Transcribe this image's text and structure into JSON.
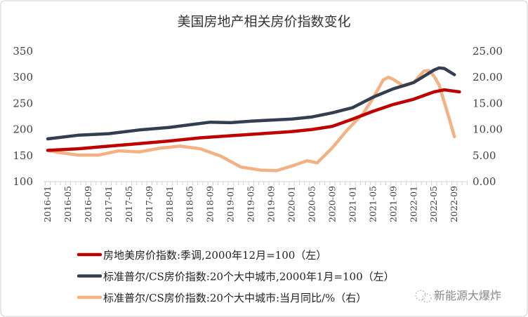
{
  "chart_data": {
    "type": "line",
    "title": "美国房地产相关房价指数变化",
    "x_ticks": [
      "2016-01",
      "2016-05",
      "2016-09",
      "2017-01",
      "2017-05",
      "2017-09",
      "2018-01",
      "2018-05",
      "2018-09",
      "2019-01",
      "2019-05",
      "2019-09",
      "2020-01",
      "2020-05",
      "2020-09",
      "2021-01",
      "2021-05",
      "2021-09",
      "2022-01",
      "2022-05",
      "2022-09"
    ],
    "y_left": {
      "ticks": [
        "100",
        "150",
        "200",
        "250",
        "300",
        "350"
      ],
      "range": [
        100,
        350
      ]
    },
    "y_right": {
      "ticks": [
        "0.00",
        "5.00",
        "10.00",
        "15.00",
        "20.00",
        "25.00"
      ],
      "range": [
        0,
        25
      ]
    },
    "grid": false,
    "legend_position": "bottom",
    "series": [
      {
        "name": "房地美房价指数:季调,2000年12月=100（左）",
        "axis": "left",
        "color": "#C00000",
        "points": [
          [
            "2016-01",
            160
          ],
          [
            "2016-07",
            163
          ],
          [
            "2017-01",
            168
          ],
          [
            "2017-07",
            173
          ],
          [
            "2018-01",
            178
          ],
          [
            "2018-07",
            184
          ],
          [
            "2019-01",
            188
          ],
          [
            "2019-07",
            192
          ],
          [
            "2020-01",
            196
          ],
          [
            "2020-05",
            200
          ],
          [
            "2020-09",
            206
          ],
          [
            "2021-01",
            220
          ],
          [
            "2021-05",
            235
          ],
          [
            "2021-09",
            248
          ],
          [
            "2022-01",
            258
          ],
          [
            "2022-05",
            272
          ],
          [
            "2022-07",
            276
          ],
          [
            "2022-10",
            272
          ]
        ]
      },
      {
        "name": "标准普尔/CS房价指数:20个大中城市,2000年1月=100（左）",
        "axis": "left",
        "color": "#333F50",
        "points": [
          [
            "2016-01",
            182
          ],
          [
            "2016-07",
            189
          ],
          [
            "2017-01",
            192
          ],
          [
            "2017-07",
            199
          ],
          [
            "2018-01",
            204
          ],
          [
            "2018-05",
            209
          ],
          [
            "2018-09",
            214
          ],
          [
            "2019-01",
            213
          ],
          [
            "2019-05",
            216
          ],
          [
            "2019-09",
            218
          ],
          [
            "2020-01",
            220
          ],
          [
            "2020-05",
            224
          ],
          [
            "2020-09",
            232
          ],
          [
            "2021-01",
            242
          ],
          [
            "2021-05",
            262
          ],
          [
            "2021-09",
            278
          ],
          [
            "2022-01",
            290
          ],
          [
            "2022-03",
            302
          ],
          [
            "2022-05",
            314
          ],
          [
            "2022-06",
            318
          ],
          [
            "2022-07",
            317
          ],
          [
            "2022-09",
            305
          ]
        ]
      },
      {
        "name": "标准普尔/CS房价指数:20个大中城市:当月同比/%（右）",
        "axis": "right",
        "color": "#F4B183",
        "points": [
          [
            "2016-01",
            6.0
          ],
          [
            "2016-03",
            5.6
          ],
          [
            "2016-07",
            5.1
          ],
          [
            "2016-11",
            5.1
          ],
          [
            "2017-03",
            5.9
          ],
          [
            "2017-07",
            5.7
          ],
          [
            "2017-11",
            6.4
          ],
          [
            "2018-03",
            6.8
          ],
          [
            "2018-07",
            6.3
          ],
          [
            "2018-11",
            4.9
          ],
          [
            "2019-03",
            2.8
          ],
          [
            "2019-07",
            2.2
          ],
          [
            "2019-10",
            2.1
          ],
          [
            "2020-01",
            3.0
          ],
          [
            "2020-04",
            4.0
          ],
          [
            "2020-06",
            3.6
          ],
          [
            "2020-09",
            6.5
          ],
          [
            "2020-12",
            10.0
          ],
          [
            "2021-03",
            13.0
          ],
          [
            "2021-05",
            16.0
          ],
          [
            "2021-07",
            19.5
          ],
          [
            "2021-08",
            20.0
          ],
          [
            "2021-09",
            19.6
          ],
          [
            "2021-11",
            18.3
          ],
          [
            "2022-01",
            19.0
          ],
          [
            "2022-03",
            21.2
          ],
          [
            "2022-04",
            21.3
          ],
          [
            "2022-05",
            20.2
          ],
          [
            "2022-06",
            18.5
          ],
          [
            "2022-08",
            12.0
          ],
          [
            "2022-09",
            8.6
          ]
        ]
      }
    ]
  },
  "watermark": "新能源大爆炸"
}
